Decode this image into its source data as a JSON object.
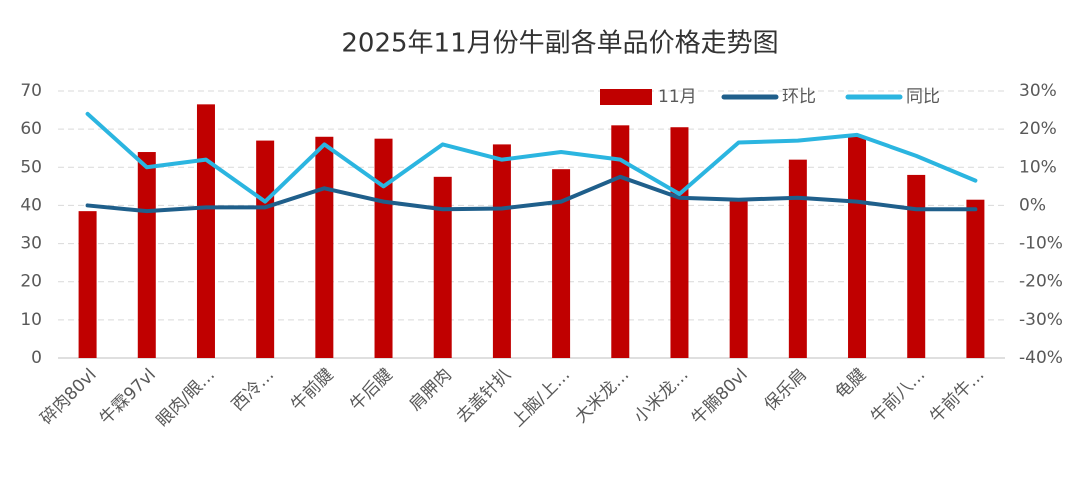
{
  "chart_data": {
    "type": "bar",
    "title": "2025年11月份牛副各单品价格走势图",
    "categories": [
      "碎肉80vl",
      "牛霖97vl",
      "眼肉/眼…",
      "西冷…",
      "牛前腱",
      "牛后腱",
      "肩胛肉",
      "去盖针扒",
      "上脑/上…",
      "大米龙…",
      "小米龙…",
      "牛腩80vl",
      "保乐肩",
      "龟腱",
      "牛前八…",
      "牛前牛…"
    ],
    "series": [
      {
        "name": "11月",
        "type": "bar",
        "color": "#c00000",
        "values": [
          38.5,
          54,
          66.5,
          57,
          58,
          57.5,
          47.5,
          56,
          49.5,
          61,
          60.5,
          41.5,
          52,
          58,
          48,
          41.5
        ]
      },
      {
        "name": "环比",
        "type": "line",
        "axis": "y2",
        "color": "#1f5f8b",
        "values": [
          0,
          -1.5,
          -0.5,
          -0.5,
          4.5,
          1,
          -1,
          -0.8,
          1,
          7.5,
          2,
          1.5,
          2,
          1,
          -1,
          -1
        ]
      },
      {
        "name": "同比",
        "type": "line",
        "axis": "y2",
        "color": "#2bb5e0",
        "values": [
          24,
          10,
          12,
          1,
          16,
          5,
          16,
          12,
          14,
          12,
          3,
          16.5,
          17,
          18.5,
          13,
          6.5
        ]
      }
    ],
    "ylim": [
      0,
      70
    ],
    "yticks": [
      0,
      10,
      20,
      30,
      40,
      50,
      60,
      70
    ],
    "y2lim": [
      -40,
      30
    ],
    "y2ticks": [
      {
        "value": -40,
        "label": "-40%"
      },
      {
        "value": -30,
        "label": "-30%"
      },
      {
        "value": -20,
        "label": "-20%"
      },
      {
        "value": -10,
        "label": "-10%"
      },
      {
        "value": 0,
        "label": "0%"
      },
      {
        "value": 10,
        "label": "10%"
      },
      {
        "value": 20,
        "label": "20%"
      },
      {
        "value": 30,
        "label": "30%"
      }
    ],
    "grid": true,
    "legend": "top-right"
  }
}
